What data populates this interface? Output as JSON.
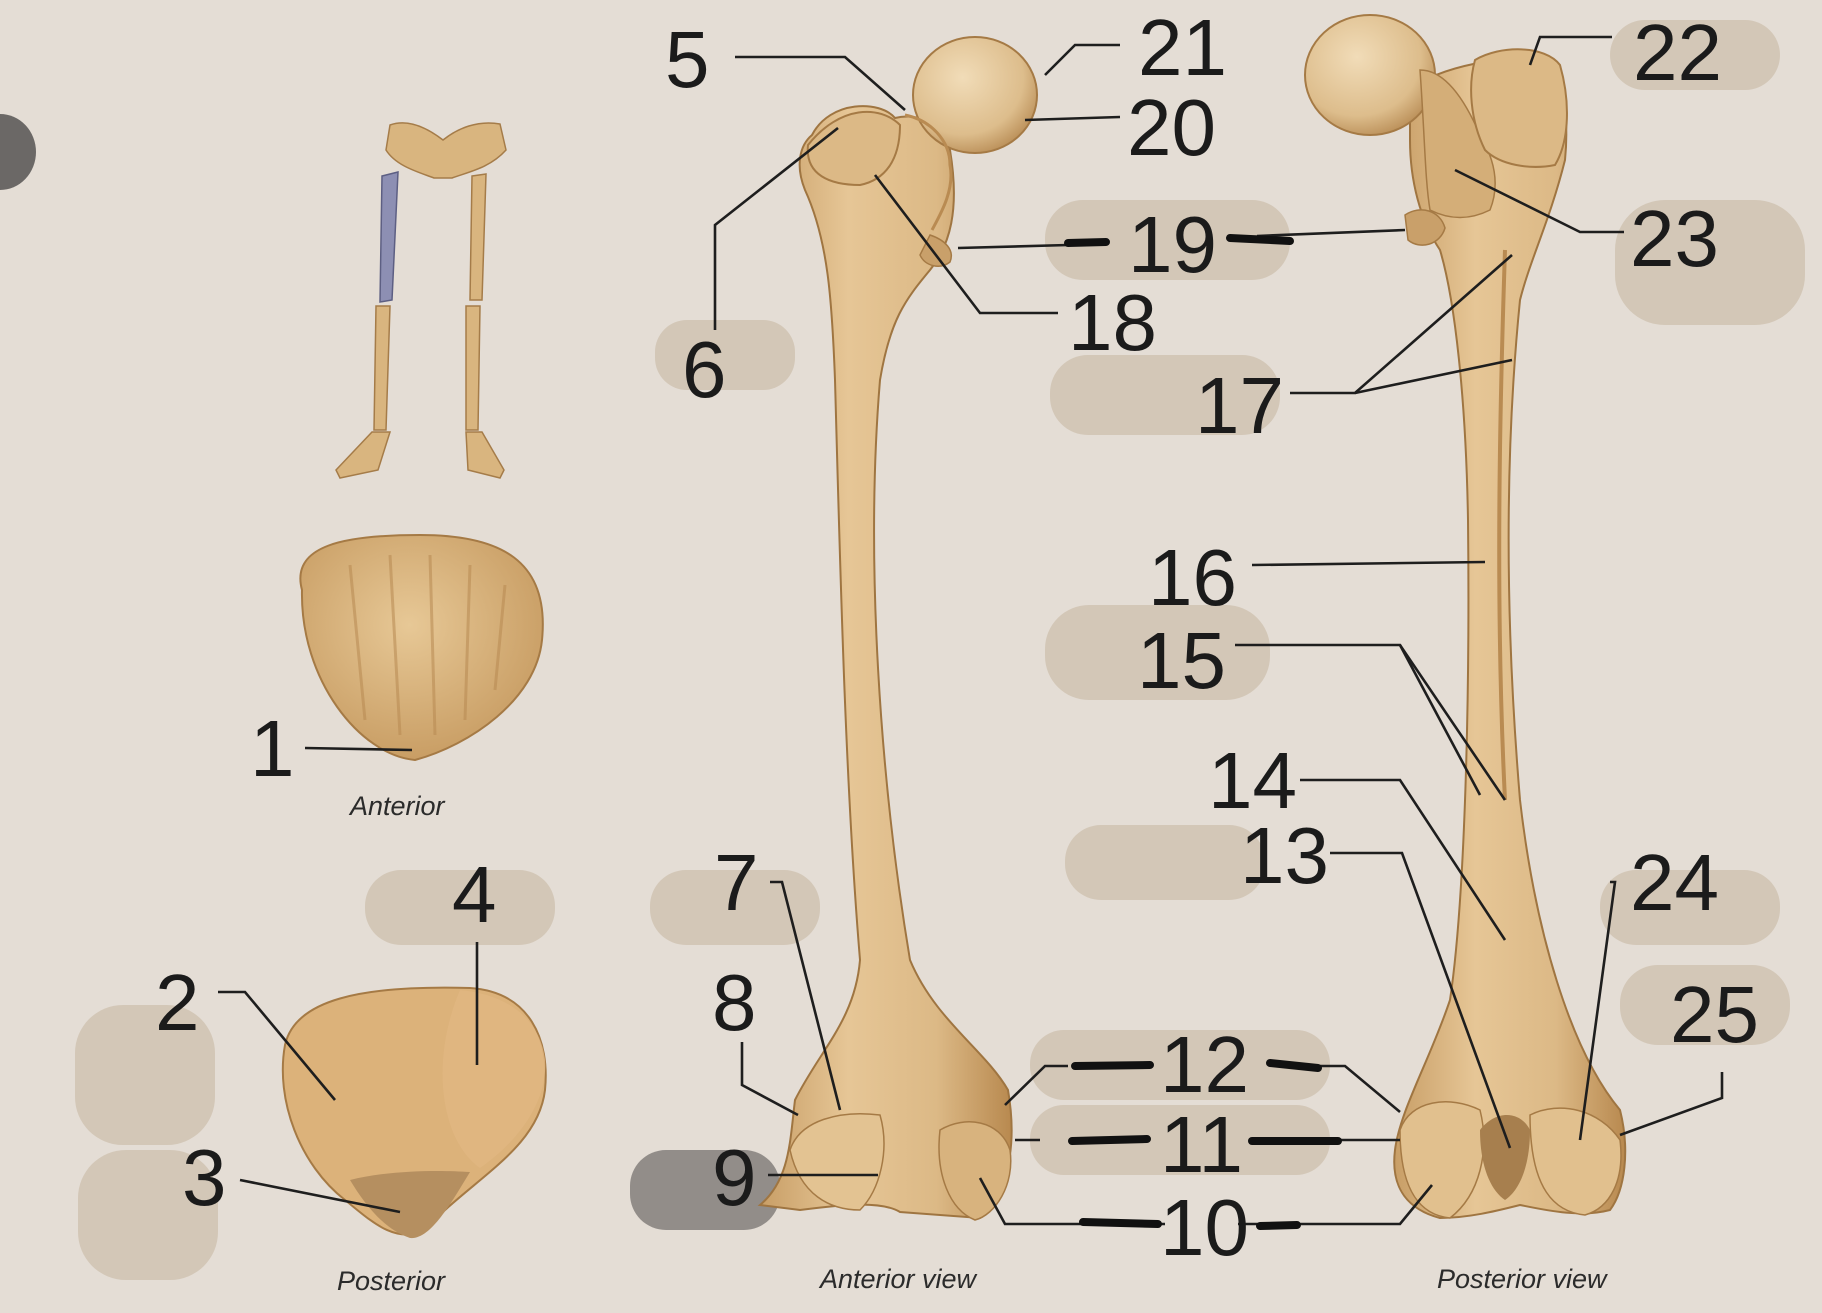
{
  "numbers": {
    "n1": "1",
    "n2": "2",
    "n3": "3",
    "n4": "4",
    "n5": "5",
    "n6": "6",
    "n7": "7",
    "n8": "8",
    "n9": "9",
    "n10": "10",
    "n11": "11",
    "n12": "12",
    "n13": "13",
    "n14": "14",
    "n15": "15",
    "n16": "16",
    "n17": "17",
    "n18": "18",
    "n19": "19",
    "n20": "20",
    "n21": "21",
    "n22": "22",
    "n23": "23",
    "n24": "24",
    "n25": "25"
  },
  "captions": {
    "patella_anterior": "Anterior",
    "patella_posterior": "Posterior",
    "femur_anterior": "Anterior view",
    "femur_posterior": "Posterior view"
  },
  "colors": {
    "background": "#e4ddd5",
    "bone": "#dcb986",
    "bone_shadow": "#b98f58",
    "highlight_bone": "#8d8fb3",
    "label_patch": "#d2c6b6",
    "label_patch_dark": "#8f8a86"
  }
}
